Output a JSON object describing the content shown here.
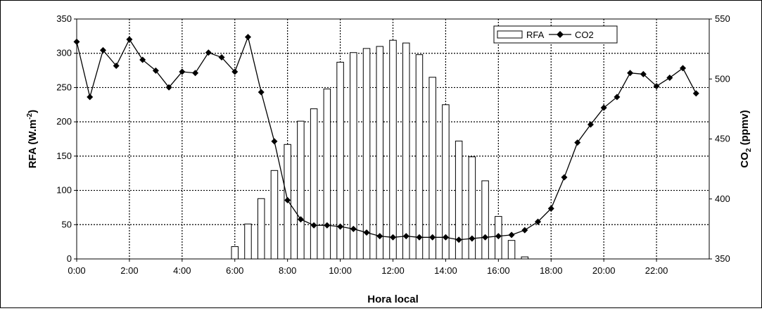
{
  "chart_data": {
    "type": "bar+line",
    "xlabel": "Hora local",
    "ylabel_left": "RFA (W.m",
    "ylabel_left_sup": "-2",
    "ylabel_left_tail": ")",
    "ylabel_right_prefix": "CO",
    "ylabel_right_sub": "2",
    "ylabel_right_tail": " (ppmv)",
    "x_range_hours": [
      0,
      24
    ],
    "x_ticks": [
      {
        "h": 0,
        "label": "0:00"
      },
      {
        "h": 2,
        "label": "2:00"
      },
      {
        "h": 4,
        "label": "4:00"
      },
      {
        "h": 6,
        "label": "6:00"
      },
      {
        "h": 8,
        "label": "8:00"
      },
      {
        "h": 10,
        "label": "10:00"
      },
      {
        "h": 12,
        "label": "12:00"
      },
      {
        "h": 14,
        "label": "14:00"
      },
      {
        "h": 16,
        "label": "16:00"
      },
      {
        "h": 18,
        "label": "18:00"
      },
      {
        "h": 20,
        "label": "20:00"
      },
      {
        "h": 22,
        "label": "22:00"
      }
    ],
    "ylim_left": [
      0,
      350
    ],
    "yticks_left": [
      0,
      50,
      100,
      150,
      200,
      250,
      300,
      350
    ],
    "ylim_right": [
      350,
      550
    ],
    "yticks_right": [
      350,
      400,
      450,
      500,
      550
    ],
    "grid": true,
    "legend_position": "top-right",
    "series": [
      {
        "name": "RFA",
        "type": "bar",
        "axis": "left",
        "color": "#ffffff",
        "x": [
          6.0,
          6.5,
          7.0,
          7.5,
          8.0,
          8.5,
          9.0,
          9.5,
          10.0,
          10.5,
          11.0,
          11.5,
          12.0,
          12.5,
          13.0,
          13.5,
          14.0,
          14.5,
          15.0,
          15.5,
          16.0,
          16.5,
          17.0
        ],
        "values": [
          18,
          51,
          88,
          129,
          167,
          201,
          219,
          248,
          287,
          301,
          307,
          310,
          319,
          315,
          298,
          265,
          225,
          172,
          149,
          114,
          62,
          27,
          3
        ]
      },
      {
        "name": "CO2",
        "type": "line",
        "axis": "right",
        "marker": "diamond",
        "color": "#000000",
        "x": [
          0.0,
          0.5,
          1.0,
          1.5,
          2.0,
          2.5,
          3.0,
          3.5,
          4.0,
          4.5,
          5.0,
          5.5,
          6.0,
          6.5,
          7.0,
          7.5,
          8.0,
          8.5,
          9.0,
          9.5,
          10.0,
          10.5,
          11.0,
          11.5,
          12.0,
          12.5,
          13.0,
          13.5,
          14.0,
          14.5,
          15.0,
          15.5,
          16.0,
          16.5,
          17.0,
          17.5,
          18.0,
          18.5,
          19.0,
          19.5,
          20.0,
          20.5,
          21.0,
          21.5,
          22.0,
          22.5,
          23.0,
          23.5
        ],
        "values": [
          531,
          485,
          524,
          511,
          533,
          516,
          507,
          493,
          506,
          505,
          522,
          518,
          506,
          535,
          489,
          448,
          399,
          383,
          378,
          378,
          377,
          375,
          372,
          369,
          368,
          369,
          368,
          368,
          368,
          366,
          367,
          368,
          369,
          370,
          374,
          381,
          392,
          418,
          447,
          462,
          476,
          485,
          505,
          504,
          494,
          501,
          509,
          488
        ]
      }
    ]
  }
}
